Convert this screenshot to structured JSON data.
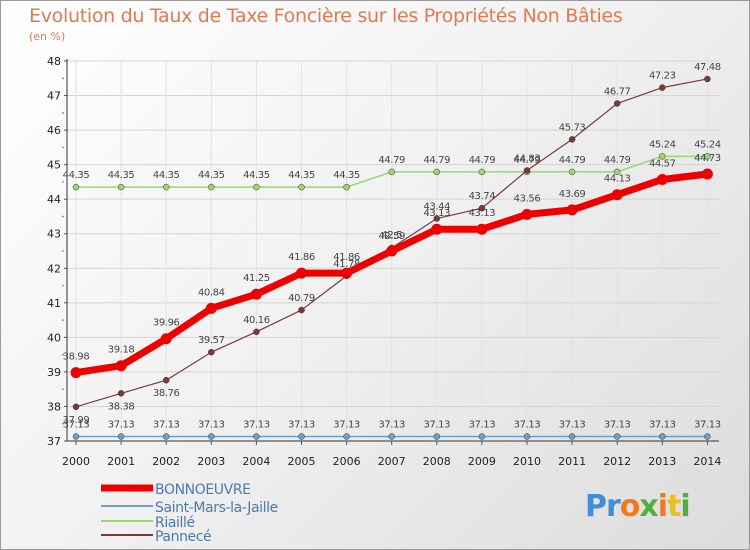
{
  "title": "Evolution du Taux de Taxe Foncière sur les Propriétés Non Bâties",
  "subtitle": "(en %)",
  "colors": {
    "BONNOEUVRE": "#ee0000",
    "Saint-Mars-la-Jaille": "#6f9fc8",
    "Riaillé": "#9ad86a",
    "Pannecé": "#7a3a38",
    "title": "#e07a52"
  },
  "logo": {
    "letters": [
      "P",
      "r",
      "o",
      "x",
      "i",
      "t",
      "i"
    ],
    "colors": [
      "#3f8fd8",
      "#3f8fd8",
      "#f07a20",
      "#4fb03f",
      "#f07a20",
      "#e8c020",
      "#4fb03f"
    ]
  },
  "chart_data": {
    "type": "line",
    "x": [
      "2000",
      "2001",
      "2002",
      "2003",
      "2004",
      "2005",
      "2006",
      "2007",
      "2008",
      "2009",
      "2010",
      "2011",
      "2012",
      "2013",
      "2014"
    ],
    "yticks": [
      "37",
      "38",
      "39",
      "40",
      "41",
      "42",
      "43",
      "44",
      "45",
      "46",
      "47",
      "48"
    ],
    "ylim": [
      37,
      48
    ],
    "grid": true,
    "legend_position": "bottom-left",
    "series": [
      {
        "name": "BONNOEUVRE",
        "values": [
          38.98,
          39.18,
          39.96,
          40.84,
          41.25,
          41.86,
          41.86,
          42.5,
          43.13,
          43.13,
          43.56,
          43.69,
          44.13,
          44.57,
          44.73
        ],
        "labels": [
          "38.98",
          "39.18",
          "39.96",
          "40.84",
          "41.25",
          "41.86",
          "41.86",
          "42.5",
          "43.13",
          "43.13",
          "43.56",
          "43.69",
          "44.13",
          "44.57",
          "44.73"
        ]
      },
      {
        "name": "Saint-Mars-la-Jaille",
        "values": [
          37.13,
          37.13,
          37.13,
          37.13,
          37.13,
          37.13,
          37.13,
          37.13,
          37.13,
          37.13,
          37.13,
          37.13,
          37.13,
          37.13,
          37.13
        ],
        "labels": [
          "37.13",
          "37.13",
          "37.13",
          "37.13",
          "37.13",
          "37.13",
          "37.13",
          "37.13",
          "37.13",
          "37.13",
          "37.13",
          "37.13",
          "37.13",
          "37.13",
          "37.13"
        ]
      },
      {
        "name": "Riaillé",
        "values": [
          44.35,
          44.35,
          44.35,
          44.35,
          44.35,
          44.35,
          44.35,
          44.79,
          44.79,
          44.79,
          44.79,
          44.79,
          44.79,
          45.24,
          45.24
        ],
        "labels": [
          "44.35",
          "44.35",
          "44.35",
          "44.35",
          "44.35",
          "44.35",
          "44.35",
          "44.79",
          "44.79",
          "44.79",
          "44.79",
          "44.79",
          "44.79",
          "45.24",
          "45.24"
        ]
      },
      {
        "name": "Pannecé",
        "values": [
          37.99,
          38.38,
          38.76,
          39.57,
          40.16,
          40.79,
          41.78,
          42.59,
          43.44,
          43.74,
          44.83,
          45.73,
          46.77,
          47.23,
          47.48
        ],
        "labels": [
          "37.99",
          "38.38",
          "38.76",
          "39.57",
          "40.16",
          "40.79",
          "41.78",
          "42.59",
          "43.44",
          "43.74",
          "44.83",
          "45.73",
          "46.77",
          "47.23",
          "47.48"
        ]
      }
    ]
  }
}
